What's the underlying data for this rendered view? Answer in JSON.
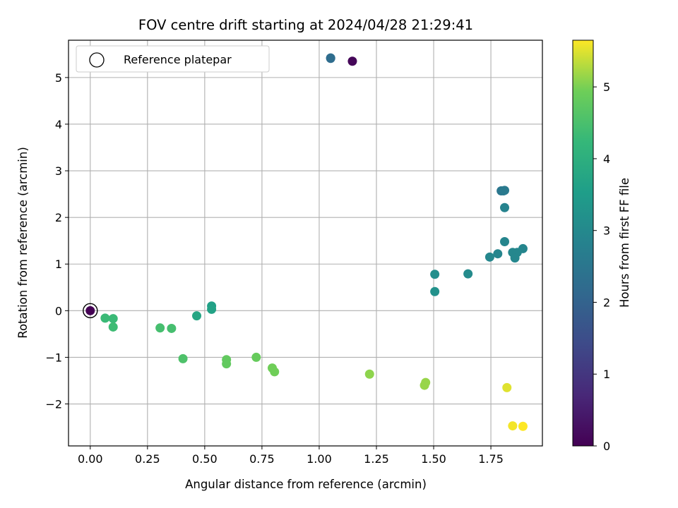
{
  "chart_data": {
    "type": "scatter",
    "title": "FOV centre drift starting at 2024/04/28 21:29:41",
    "xlabel": "Angular distance from reference (arcmin)",
    "ylabel": "Rotation from reference (arcmin)",
    "xlim": [
      -0.095,
      1.975
    ],
    "ylim": [
      -2.9,
      5.8
    ],
    "xticks": [
      0.0,
      0.25,
      0.5,
      0.75,
      1.0,
      1.25,
      1.5,
      1.75
    ],
    "xtick_labels": [
      "0.00",
      "0.25",
      "0.50",
      "0.75",
      "1.00",
      "1.25",
      "1.50",
      "1.75"
    ],
    "yticks": [
      -2,
      -1,
      0,
      1,
      2,
      3,
      4,
      5
    ],
    "ytick_labels": [
      "−2",
      "−1",
      "0",
      "1",
      "2",
      "3",
      "4",
      "5"
    ],
    "grid": true,
    "legend": {
      "placement": "top-left",
      "entries": [
        "Reference platepar"
      ]
    },
    "reference_point": {
      "x": 0.0,
      "y": 0.0
    },
    "colorbar": {
      "label": "Hours from first FF file",
      "min": 0,
      "max": 5.65,
      "ticks": [
        0,
        1,
        2,
        3,
        4,
        5
      ],
      "tick_labels": [
        "0",
        "1",
        "2",
        "3",
        "4",
        "5"
      ],
      "colormap": "viridis"
    },
    "points": [
      {
        "x": 0.0,
        "y": 0.0,
        "hours": 0.0
      },
      {
        "x": 1.145,
        "y": 5.35,
        "hours": 0.1
      },
      {
        "x": 1.05,
        "y": 5.41,
        "hours": 2.2
      },
      {
        "x": 1.05,
        "y": 5.42,
        "hours": 2.25
      },
      {
        "x": 1.795,
        "y": 2.57,
        "hours": 2.5
      },
      {
        "x": 1.805,
        "y": 2.57,
        "hours": 2.55
      },
      {
        "x": 1.81,
        "y": 2.58,
        "hours": 2.6
      },
      {
        "x": 1.81,
        "y": 2.21,
        "hours": 2.85
      },
      {
        "x": 1.81,
        "y": 1.48,
        "hours": 2.9
      },
      {
        "x": 1.89,
        "y": 1.33,
        "hours": 2.9
      },
      {
        "x": 1.78,
        "y": 1.22,
        "hours": 2.9
      },
      {
        "x": 1.745,
        "y": 1.15,
        "hours": 2.95
      },
      {
        "x": 1.845,
        "y": 1.25,
        "hours": 2.95
      },
      {
        "x": 1.865,
        "y": 1.25,
        "hours": 2.95
      },
      {
        "x": 1.855,
        "y": 1.13,
        "hours": 2.95
      },
      {
        "x": 1.65,
        "y": 0.79,
        "hours": 3.05
      },
      {
        "x": 1.505,
        "y": 0.78,
        "hours": 3.15
      },
      {
        "x": 1.505,
        "y": 0.41,
        "hours": 3.2
      },
      {
        "x": 0.53,
        "y": 0.1,
        "hours": 3.6
      },
      {
        "x": 0.53,
        "y": 0.03,
        "hours": 3.65
      },
      {
        "x": 0.465,
        "y": -0.11,
        "hours": 3.75
      },
      {
        "x": 0.065,
        "y": -0.16,
        "hours": 4.3
      },
      {
        "x": 0.1,
        "y": -0.17,
        "hours": 4.3
      },
      {
        "x": 0.1,
        "y": -0.35,
        "hours": 4.35
      },
      {
        "x": 0.305,
        "y": -0.37,
        "hours": 4.45
      },
      {
        "x": 0.355,
        "y": -0.38,
        "hours": 4.45
      },
      {
        "x": 0.405,
        "y": -1.03,
        "hours": 4.55
      },
      {
        "x": 0.595,
        "y": -1.05,
        "hours": 4.8
      },
      {
        "x": 0.595,
        "y": -1.14,
        "hours": 4.8
      },
      {
        "x": 0.725,
        "y": -1.0,
        "hours": 4.85
      },
      {
        "x": 0.795,
        "y": -1.23,
        "hours": 4.95
      },
      {
        "x": 0.805,
        "y": -1.31,
        "hours": 4.95
      },
      {
        "x": 1.22,
        "y": -1.36,
        "hours": 5.1
      },
      {
        "x": 1.465,
        "y": -1.54,
        "hours": 5.15
      },
      {
        "x": 1.46,
        "y": -1.6,
        "hours": 5.15
      },
      {
        "x": 1.82,
        "y": -1.65,
        "hours": 5.5
      },
      {
        "x": 1.845,
        "y": -2.47,
        "hours": 5.6
      },
      {
        "x": 1.89,
        "y": -2.48,
        "hours": 5.65
      }
    ]
  }
}
